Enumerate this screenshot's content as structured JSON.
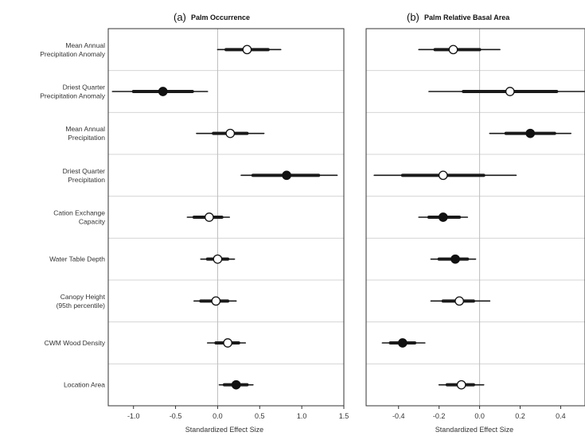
{
  "chart_data": [
    {
      "type": "forest",
      "panel": "(a)",
      "title": "Palm Occurrence",
      "xlabel": "Standardized Effect Size",
      "xlim": [
        -1.3,
        1.5
      ],
      "xticks": [
        -1.0,
        -0.5,
        0.0,
        0.5,
        1.0,
        1.5
      ],
      "xtick_labels": [
        "-1.0",
        "-0.5",
        "0.0",
        "0.5",
        "1.0",
        "1.5"
      ],
      "reference_line": 0,
      "grid": "horizontal row separators",
      "marker_legend": "filled = significant, open = not significant",
      "predictors": [
        {
          "label": [
            "Mean Annual",
            "Precipitation Anomaly"
          ],
          "estimate": 0.35,
          "ci_inner": [
            0.1,
            0.6
          ],
          "ci_outer": [
            0.0,
            0.75
          ],
          "significant": false
        },
        {
          "label": [
            "Driest Quarter",
            "Precipitation Anomaly"
          ],
          "estimate": -0.65,
          "ci_inner": [
            -1.0,
            -0.3
          ],
          "ci_outer": [
            -1.25,
            -0.12
          ],
          "significant": true
        },
        {
          "label": [
            "Mean Annual",
            "Precipitation"
          ],
          "estimate": 0.15,
          "ci_inner": [
            -0.05,
            0.35
          ],
          "ci_outer": [
            -0.25,
            0.55
          ],
          "significant": false
        },
        {
          "label": [
            "Driest Quarter",
            "Precipitation"
          ],
          "estimate": 0.82,
          "ci_inner": [
            0.42,
            1.2
          ],
          "ci_outer": [
            0.28,
            1.42
          ],
          "significant": true
        },
        {
          "label": [
            "Cation Exchange",
            "Capacity"
          ],
          "estimate": -0.1,
          "ci_inner": [
            -0.28,
            0.05
          ],
          "ci_outer": [
            -0.36,
            0.14
          ],
          "significant": false
        },
        {
          "label": [
            "Water Table Depth"
          ],
          "estimate": 0.0,
          "ci_inner": [
            -0.12,
            0.12
          ],
          "ci_outer": [
            -0.2,
            0.2
          ],
          "significant": false
        },
        {
          "label": [
            "Canopy Height",
            "(95th percentile)"
          ],
          "estimate": -0.02,
          "ci_inner": [
            -0.2,
            0.12
          ],
          "ci_outer": [
            -0.28,
            0.22
          ],
          "significant": false
        },
        {
          "label": [
            "CWM Wood Density"
          ],
          "estimate": 0.12,
          "ci_inner": [
            -0.02,
            0.25
          ],
          "ci_outer": [
            -0.12,
            0.33
          ],
          "significant": false
        },
        {
          "label": [
            "Location Area"
          ],
          "estimate": 0.22,
          "ci_inner": [
            0.08,
            0.35
          ],
          "ci_outer": [
            0.02,
            0.42
          ],
          "significant": true
        }
      ]
    },
    {
      "type": "forest",
      "panel": "(b)",
      "title": "Palm Relative Basal Area",
      "xlabel": "Standardized Effect Size",
      "xlim": [
        -0.56,
        0.52
      ],
      "xticks": [
        -0.4,
        -0.2,
        0.0,
        0.2,
        0.4
      ],
      "xtick_labels": [
        "-0.4",
        "-0.2",
        "0.0",
        "0.2",
        "0.4"
      ],
      "reference_line": 0,
      "grid": "horizontal row separators",
      "marker_legend": "filled = significant, open = not significant",
      "predictors": [
        {
          "label": [
            "Mean Annual",
            "Precipitation Anomaly"
          ],
          "estimate": -0.13,
          "ci_inner": [
            -0.22,
            0.0
          ],
          "ci_outer": [
            -0.3,
            0.1
          ],
          "significant": false
        },
        {
          "label": [
            "Driest Quarter",
            "Precipitation Anomaly"
          ],
          "estimate": 0.15,
          "ci_inner": [
            -0.08,
            0.38
          ],
          "ci_outer": [
            -0.25,
            0.52
          ],
          "significant": false
        },
        {
          "label": [
            "Mean Annual",
            "Precipitation"
          ],
          "estimate": 0.25,
          "ci_inner": [
            0.13,
            0.37
          ],
          "ci_outer": [
            0.05,
            0.45
          ],
          "significant": true
        },
        {
          "label": [
            "Driest Quarter",
            "Precipitation"
          ],
          "estimate": -0.18,
          "ci_inner": [
            -0.38,
            0.02
          ],
          "ci_outer": [
            -0.52,
            0.18
          ],
          "significant": false
        },
        {
          "label": [
            "Cation Exchange",
            "Capacity"
          ],
          "estimate": -0.18,
          "ci_inner": [
            -0.25,
            -0.1
          ],
          "ci_outer": [
            -0.3,
            -0.06
          ],
          "significant": true
        },
        {
          "label": [
            "Water Table Depth"
          ],
          "estimate": -0.12,
          "ci_inner": [
            -0.2,
            -0.06
          ],
          "ci_outer": [
            -0.24,
            -0.02
          ],
          "significant": true
        },
        {
          "label": [
            "Canopy Height",
            "(95th percentile)"
          ],
          "estimate": -0.1,
          "ci_inner": [
            -0.18,
            -0.03
          ],
          "ci_outer": [
            -0.24,
            0.05
          ],
          "significant": false
        },
        {
          "label": [
            "CWM Wood Density"
          ],
          "estimate": -0.38,
          "ci_inner": [
            -0.44,
            -0.32
          ],
          "ci_outer": [
            -0.48,
            -0.27
          ],
          "significant": true
        },
        {
          "label": [
            "Location Area"
          ],
          "estimate": -0.09,
          "ci_inner": [
            -0.16,
            -0.03
          ],
          "ci_outer": [
            -0.2,
            0.02
          ],
          "significant": false
        }
      ]
    }
  ],
  "colors": {
    "interval": "#1a1a1a",
    "point_fill_significant": "#111111",
    "point_fill_nonsignificant": "#ffffff",
    "reference_line": "#bdbdbd",
    "row_separator": "#d4d4d4",
    "frame": "#333333"
  }
}
